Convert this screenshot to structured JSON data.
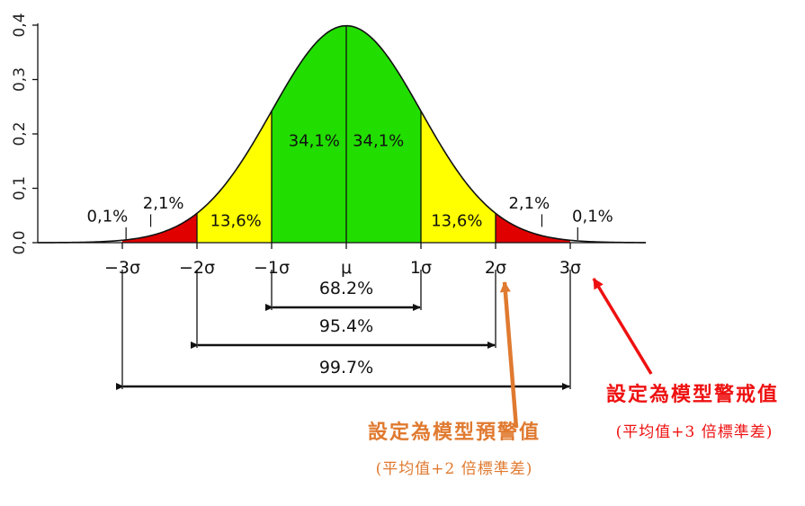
{
  "chart_data": {
    "type": "area",
    "title": "",
    "xlabel": "",
    "ylabel": "",
    "ylim": [
      0,
      0.4
    ],
    "xlim": [
      -4.2,
      4.2
    ],
    "yticks": [
      "0,0",
      "0,1",
      "0,2",
      "0,3",
      "0,4"
    ],
    "xticks": [
      {
        "x": -3,
        "label": "−3σ"
      },
      {
        "x": -2,
        "label": "−2σ"
      },
      {
        "x": -1,
        "label": "−1σ"
      },
      {
        "x": 0,
        "label": "μ"
      },
      {
        "x": 1,
        "label": "1σ"
      },
      {
        "x": 2,
        "label": "2σ"
      },
      {
        "x": 3,
        "label": "3σ"
      }
    ],
    "curve": "normal pdf, mean 0, sd 1",
    "regions": [
      {
        "from": -3,
        "to": -2,
        "color": "#e00000",
        "label": "2,1%"
      },
      {
        "from": -2,
        "to": -1,
        "color": "#ffff00",
        "label": "13,6%"
      },
      {
        "from": -1,
        "to": 0,
        "color": "#22dd00",
        "label": "34,1%"
      },
      {
        "from": 0,
        "to": 1,
        "color": "#22dd00",
        "label": "34,1%"
      },
      {
        "from": 1,
        "to": 2,
        "color": "#ffff00",
        "label": "13,6%"
      },
      {
        "from": 2,
        "to": 3,
        "color": "#e00000",
        "label": "2,1%"
      }
    ],
    "tail_labels": [
      {
        "x": -3,
        "label": "0,1%"
      },
      {
        "x": 3,
        "label": "0,1%"
      }
    ],
    "ranges": [
      {
        "from": -1,
        "to": 1,
        "label": "68.2%"
      },
      {
        "from": -2,
        "to": 2,
        "label": "95.4%"
      },
      {
        "from": -3,
        "to": 3,
        "label": "99.7%"
      }
    ]
  },
  "annotations": {
    "warning": {
      "title": "設定為模型預警值",
      "subtitle": "(平均值+2 倍標準差)",
      "color": "#e07a30",
      "points_to": "2σ"
    },
    "alert": {
      "title": "設定為模型警戒值",
      "subtitle": "(平均值+3 倍標準差)",
      "color": "#ee1111",
      "points_to": "3σ"
    }
  }
}
